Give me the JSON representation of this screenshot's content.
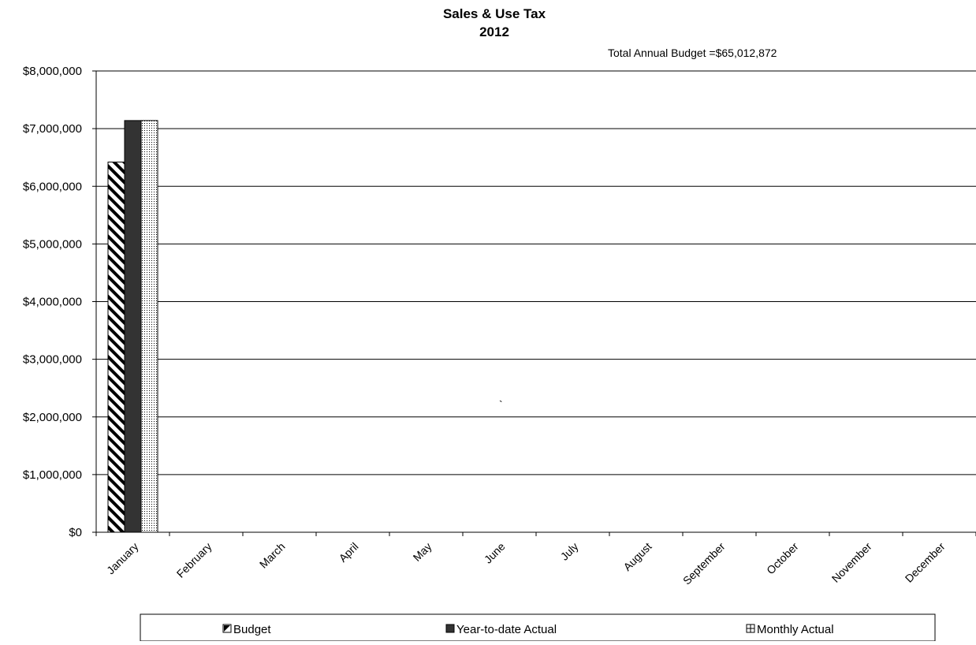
{
  "chart_data": {
    "type": "bar",
    "title": "Sales & Use Tax",
    "subtitle": "2012",
    "annotation": "Total Annual Budget  =$65,012,872",
    "stray_mark": "`",
    "categories": [
      "January",
      "February",
      "March",
      "April",
      "May",
      "June",
      "July",
      "August",
      "September",
      "October",
      "November",
      "December"
    ],
    "series": [
      {
        "name": "Budget",
        "values": [
          6420000,
          null,
          null,
          null,
          null,
          null,
          null,
          null,
          null,
          null,
          null,
          null
        ],
        "pattern": "diagonal-stripes",
        "color": "#000000"
      },
      {
        "name": "Year-to-date Actual",
        "values": [
          7140000,
          null,
          null,
          null,
          null,
          null,
          null,
          null,
          null,
          null,
          null,
          null
        ],
        "pattern": "solid",
        "color": "#333333"
      },
      {
        "name": "Monthly Actual",
        "values": [
          7140000,
          null,
          null,
          null,
          null,
          null,
          null,
          null,
          null,
          null,
          null,
          null
        ],
        "pattern": "dotted-grid",
        "color": "#000000"
      }
    ],
    "ylim": [
      0,
      8000000
    ],
    "yticks": [
      0,
      1000000,
      2000000,
      3000000,
      4000000,
      5000000,
      6000000,
      7000000,
      8000000
    ],
    "ytick_labels": [
      "$0",
      "$1,000,000",
      "$2,000,000",
      "$3,000,000",
      "$4,000,000",
      "$5,000,000",
      "$6,000,000",
      "$7,000,000",
      "$8,000,000"
    ],
    "grid": true,
    "legend_position": "bottom"
  }
}
